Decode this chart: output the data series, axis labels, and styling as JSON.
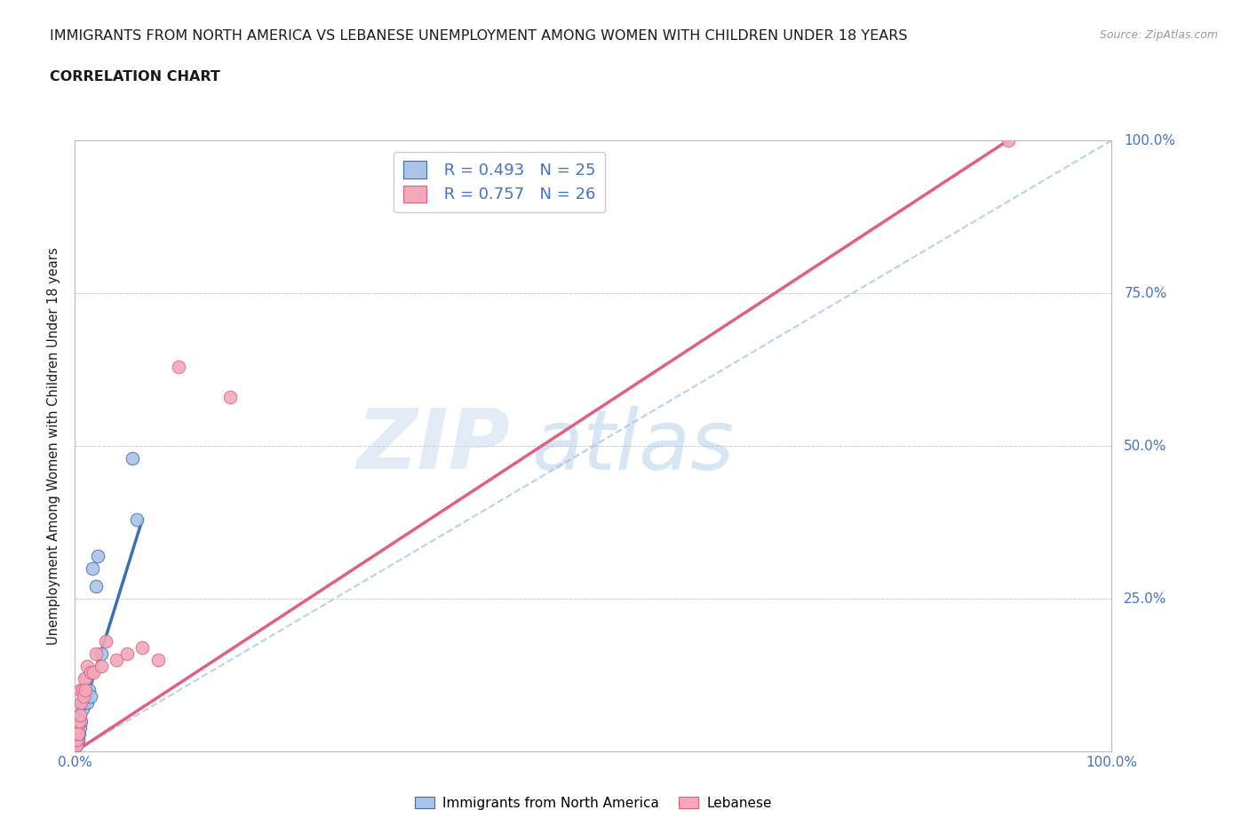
{
  "title_line1": "IMMIGRANTS FROM NORTH AMERICA VS LEBANESE UNEMPLOYMENT AMONG WOMEN WITH CHILDREN UNDER 18 YEARS",
  "title_line2": "CORRELATION CHART",
  "source_text": "Source: ZipAtlas.com",
  "ylabel": "Unemployment Among Women with Children Under 18 years",
  "watermark_zip": "ZIP",
  "watermark_atlas": "atlas",
  "blue_scatter_x": [
    0.001,
    0.002,
    0.002,
    0.003,
    0.003,
    0.004,
    0.004,
    0.005,
    0.005,
    0.006,
    0.007,
    0.007,
    0.008,
    0.009,
    0.01,
    0.011,
    0.012,
    0.013,
    0.015,
    0.017,
    0.02,
    0.022,
    0.025,
    0.055,
    0.06
  ],
  "blue_scatter_y": [
    0.01,
    0.02,
    0.03,
    0.02,
    0.04,
    0.03,
    0.05,
    0.04,
    0.06,
    0.05,
    0.07,
    0.1,
    0.08,
    0.1,
    0.09,
    0.12,
    0.08,
    0.1,
    0.09,
    0.3,
    0.27,
    0.32,
    0.16,
    0.48,
    0.38
  ],
  "pink_scatter_x": [
    0.001,
    0.001,
    0.002,
    0.002,
    0.003,
    0.004,
    0.005,
    0.005,
    0.006,
    0.007,
    0.008,
    0.009,
    0.01,
    0.012,
    0.015,
    0.018,
    0.02,
    0.025,
    0.03,
    0.04,
    0.05,
    0.065,
    0.08,
    0.1,
    0.15,
    0.9
  ],
  "pink_scatter_y": [
    0.01,
    0.02,
    0.03,
    0.04,
    0.03,
    0.05,
    0.06,
    0.1,
    0.08,
    0.1,
    0.09,
    0.12,
    0.1,
    0.14,
    0.13,
    0.13,
    0.16,
    0.14,
    0.18,
    0.15,
    0.16,
    0.17,
    0.15,
    0.63,
    0.58,
    1.0
  ],
  "blue_line_x": [
    0.0,
    0.065
  ],
  "blue_line_y": [
    0.025,
    0.38
  ],
  "pink_line_x": [
    0.0,
    0.9
  ],
  "pink_line_y": [
    0.0,
    1.0
  ],
  "diag_line_x": [
    0.0,
    1.0
  ],
  "diag_line_y": [
    0.0,
    1.0
  ],
  "R_blue": 0.493,
  "N_blue": 25,
  "R_pink": 0.757,
  "N_pink": 26,
  "blue_color": "#aac4e8",
  "blue_line_color": "#3a6fb5",
  "pink_color": "#f2a8ba",
  "pink_line_color": "#e06080",
  "diag_color": "#b8d0ec",
  "axis_color": "#4472c4",
  "title_color": "#1a1a1a",
  "grid_color": "#cccccc",
  "background_color": "#ffffff",
  "xlim": [
    0.0,
    1.0
  ],
  "ylim": [
    0.0,
    1.0
  ],
  "legend_label_blue": "Immigrants from North America",
  "legend_label_pink": "Lebanese"
}
